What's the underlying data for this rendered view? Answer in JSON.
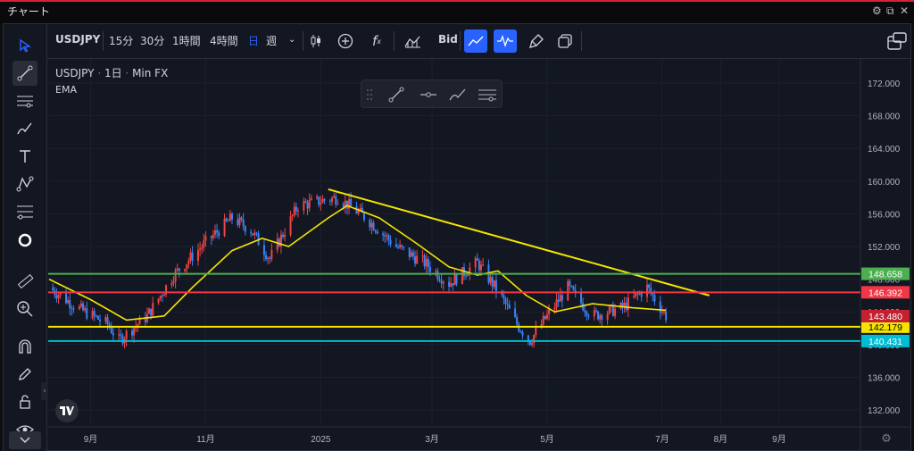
{
  "window": {
    "title": "チャート",
    "icons": [
      "gear-icon",
      "popout-icon",
      "close-icon"
    ]
  },
  "toolbar": {
    "symbol": "USDJPY",
    "intervals": [
      "15分",
      "30分",
      "1時間",
      "4時間",
      "日",
      "週"
    ],
    "active_interval": "日",
    "price_type": "Bid",
    "icons": [
      "candles-icon",
      "add-indicator-icon",
      "fx-icon",
      "bars-icon",
      "line-chart-icon",
      "wave-chart-icon",
      "brush-icon",
      "copy-icon",
      "layout-icon"
    ]
  },
  "left_toolbar": {
    "icons": [
      "cursor-icon",
      "trendline-icon",
      "horizontal-lines-icon",
      "brush-icon",
      "text-icon",
      "pattern-icon",
      "fib-icon",
      "circle-icon",
      "ruler-icon",
      "zoom-icon",
      "magnet-icon",
      "lock-pencil-icon",
      "lock-icon",
      "eye-icon",
      "collapse-icon"
    ]
  },
  "legend": {
    "symbol": "USDJPY",
    "interval": "1日",
    "source": "Min FX",
    "indicator": "EMA"
  },
  "colors": {
    "background": "#131722",
    "up_candle": "#ef4444",
    "down_candle": "#3b82f6",
    "ema": "#f5e400",
    "trendline": "#f5e400",
    "line_green": "#4caf50",
    "line_red": "#f23645",
    "line_yellow": "#f5e400",
    "line_cyan": "#00bcd4"
  },
  "chart_data": {
    "type": "candlestick",
    "title": "",
    "xlabel": "",
    "ylabel": "",
    "ylim": [
      130,
      174
    ],
    "x_ticks": [
      "9月",
      "11月",
      "2025",
      "3月",
      "5月",
      "7月",
      "8月",
      "9月"
    ],
    "y_ticks": [
      "172.000",
      "168.000",
      "164.000",
      "160.000",
      "156.000",
      "152.000",
      "148.000",
      "144.000",
      "140.000",
      "136.000",
      "132.000"
    ],
    "close_path": [
      {
        "date": "2024-08-10",
        "close": 147.0
      },
      {
        "date": "2024-08-25",
        "close": 144.5
      },
      {
        "date": "2024-09-10",
        "close": 142.5
      },
      {
        "date": "2024-09-16",
        "close": 140.5
      },
      {
        "date": "2024-10-01",
        "close": 143.5
      },
      {
        "date": "2024-10-15",
        "close": 148.5
      },
      {
        "date": "2024-11-01",
        "close": 152.5
      },
      {
        "date": "2024-11-15",
        "close": 155.5
      },
      {
        "date": "2024-11-25",
        "close": 154.0
      },
      {
        "date": "2024-12-05",
        "close": 150.5
      },
      {
        "date": "2024-12-20",
        "close": 157.0
      },
      {
        "date": "2025-01-10",
        "close": 158.0
      },
      {
        "date": "2025-01-25",
        "close": 155.5
      },
      {
        "date": "2025-02-10",
        "close": 152.0
      },
      {
        "date": "2025-02-25",
        "close": 150.0
      },
      {
        "date": "2025-03-10",
        "close": 147.5
      },
      {
        "date": "2025-03-25",
        "close": 150.0
      },
      {
        "date": "2025-04-05",
        "close": 146.5
      },
      {
        "date": "2025-04-15",
        "close": 142.5
      },
      {
        "date": "2025-04-22",
        "close": 140.5
      },
      {
        "date": "2025-05-01",
        "close": 143.5
      },
      {
        "date": "2025-05-12",
        "close": 147.0
      },
      {
        "date": "2025-05-25",
        "close": 143.5
      },
      {
        "date": "2025-06-10",
        "close": 144.5
      },
      {
        "date": "2025-06-23",
        "close": 147.0
      },
      {
        "date": "2025-07-03",
        "close": 143.5
      }
    ],
    "ema_path": [
      {
        "date": "2024-08-10",
        "value": 148.0
      },
      {
        "date": "2024-09-01",
        "value": 145.5
      },
      {
        "date": "2024-09-20",
        "value": 143.0
      },
      {
        "date": "2024-10-10",
        "value": 143.5
      },
      {
        "date": "2024-10-25",
        "value": 147.0
      },
      {
        "date": "2024-11-15",
        "value": 151.5
      },
      {
        "date": "2024-12-01",
        "value": 153.0
      },
      {
        "date": "2024-12-15",
        "value": 152.0
      },
      {
        "date": "2025-01-05",
        "value": 155.5
      },
      {
        "date": "2025-01-15",
        "value": 157.0
      },
      {
        "date": "2025-02-01",
        "value": 155.5
      },
      {
        "date": "2025-02-20",
        "value": 152.5
      },
      {
        "date": "2025-03-10",
        "value": 149.5
      },
      {
        "date": "2025-03-25",
        "value": 148.5
      },
      {
        "date": "2025-04-05",
        "value": 149.0
      },
      {
        "date": "2025-04-20",
        "value": 146.0
      },
      {
        "date": "2025-05-05",
        "value": 144.0
      },
      {
        "date": "2025-05-25",
        "value": 145.0
      },
      {
        "date": "2025-06-15",
        "value": 144.5
      },
      {
        "date": "2025-07-03",
        "value": 144.2
      }
    ],
    "trendline": [
      {
        "date": "2025-01-05",
        "value": 159.0
      },
      {
        "date": "2025-07-26",
        "value": 146.0
      }
    ],
    "horizontal_lines": [
      {
        "name": "green",
        "value": 148.658,
        "label": "148.658"
      },
      {
        "name": "red",
        "value": 146.392,
        "label": "146.392"
      },
      {
        "name": "yellow",
        "value": 142.179,
        "label": "142.179"
      },
      {
        "name": "cyan",
        "value": 140.431,
        "label": "140.431"
      }
    ],
    "last_price": {
      "value": 143.48,
      "label": "143.480"
    },
    "grid": true
  }
}
